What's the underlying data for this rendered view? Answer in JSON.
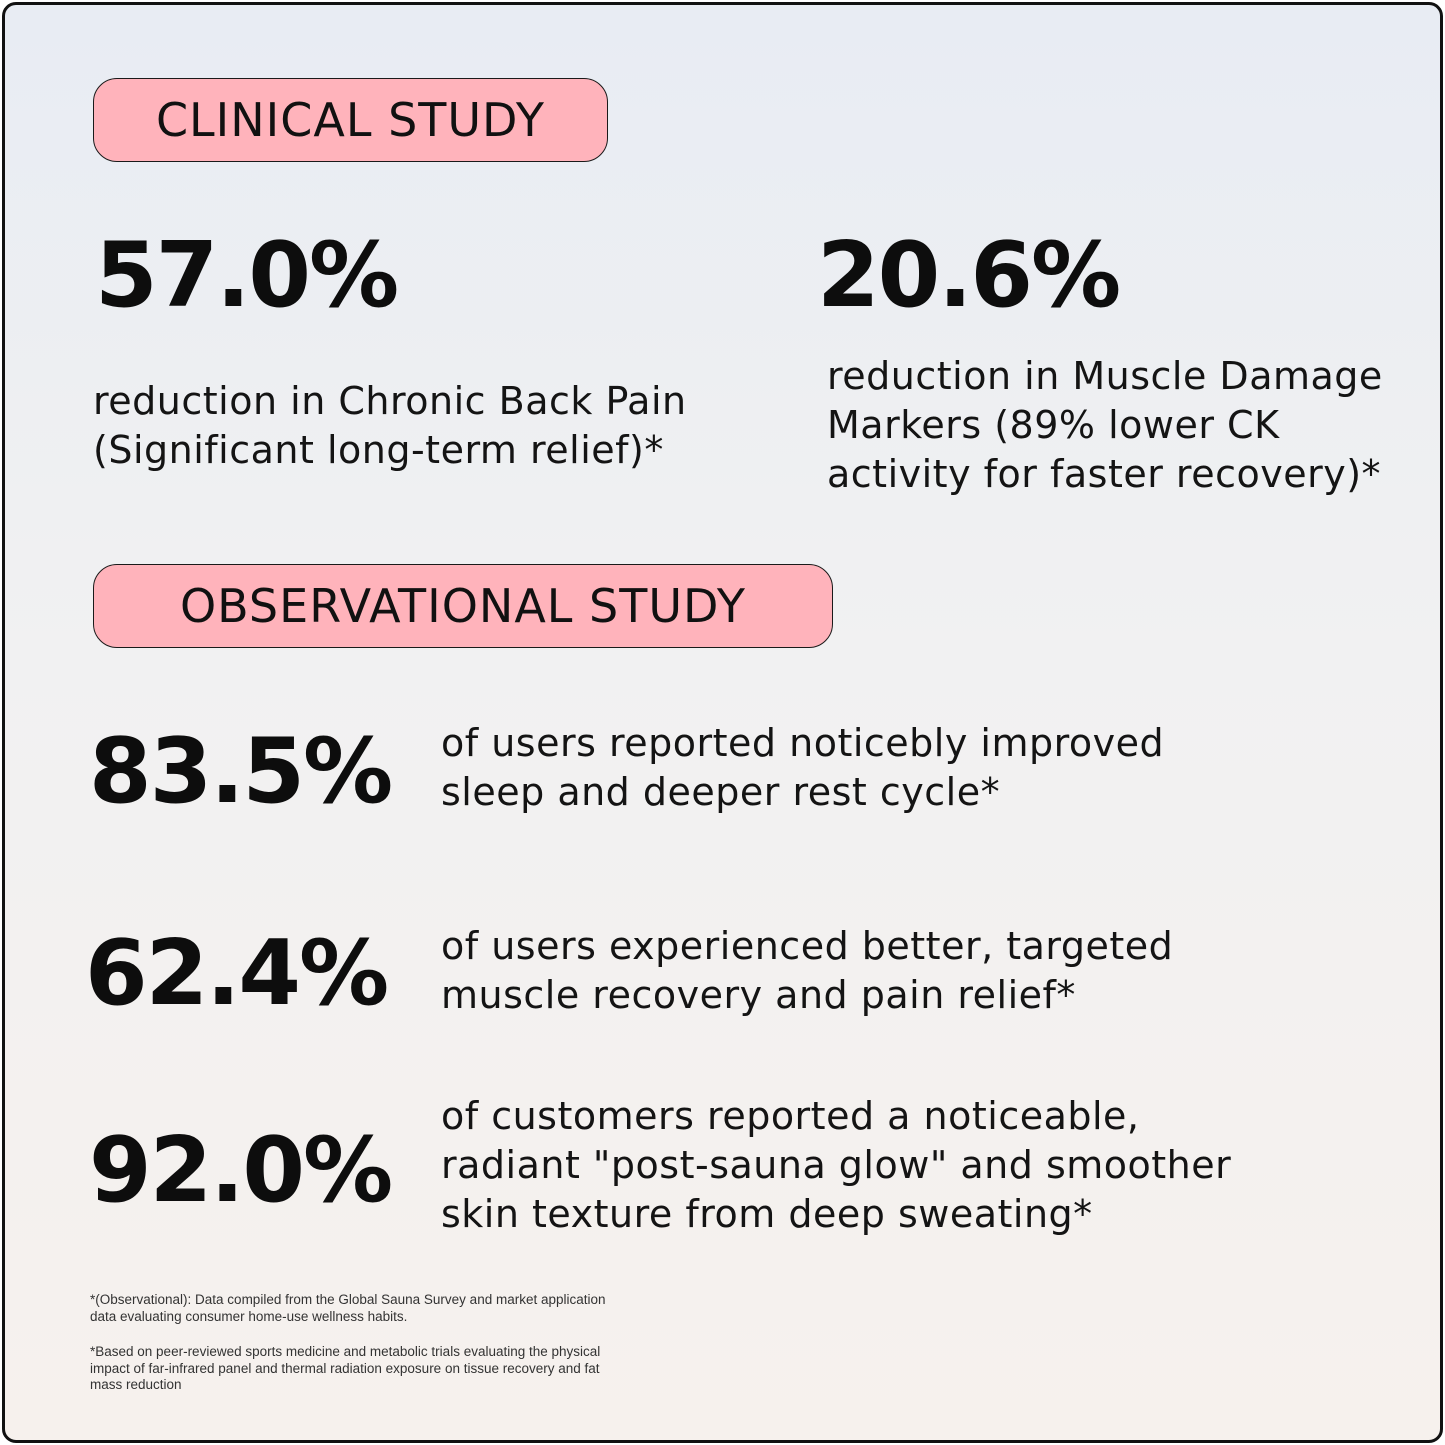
{
  "clinical": {
    "label": "CLINICAL STUDY",
    "stats": [
      {
        "value": "57.0%",
        "lines": [
          "reduction in Chronic Back Pain",
          "(Significant long-term relief)*"
        ]
      },
      {
        "value": "20.6%",
        "lines": [
          "reduction in Muscle Damage",
          "Markers (89% lower CK",
          "activity for faster recovery)*"
        ]
      }
    ]
  },
  "observational": {
    "label": "OBSERVATIONAL STUDY",
    "stats": [
      {
        "value": "83.5%",
        "lines": [
          "of users reported noticebly improved",
          "sleep and deeper rest cycle*"
        ]
      },
      {
        "value": "62.4%",
        "lines": [
          "of users experienced better, targeted",
          "muscle recovery and pain relief*"
        ]
      },
      {
        "value": "92.0%",
        "lines": [
          "of customers reported a noticeable,",
          "radiant \"post-sauna glow\" and smoother",
          "skin texture from deep sweating*"
        ]
      }
    ]
  },
  "footnotes": [
    {
      "lines": [
        "*(Observational): Data compiled from the Global Sauna Survey and market application",
        "data evaluating consumer home-use wellness habits."
      ]
    },
    {
      "lines": [
        "*Based on peer-reviewed sports medicine and metabolic trials evaluating the physical",
        "impact of far-infrared panel and thermal radiation exposure on tissue recovery and fat",
        "mass reduction"
      ]
    }
  ],
  "colors": {
    "pill_background": "#ffb3bb",
    "text": "#111111",
    "border": "#111111"
  }
}
